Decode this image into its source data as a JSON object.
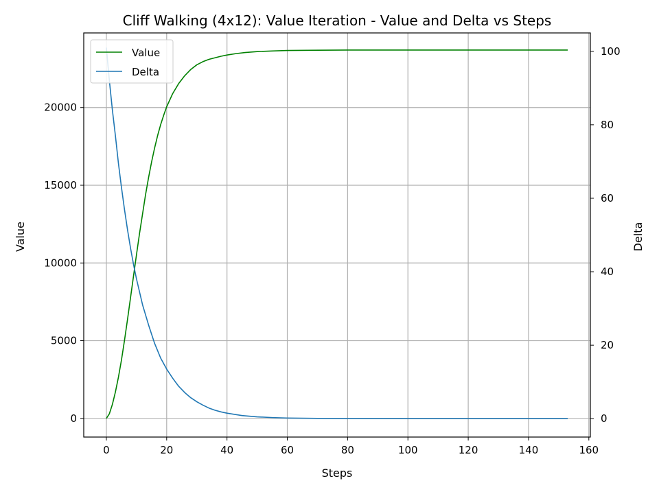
{
  "chart_data": {
    "type": "line",
    "title": "Cliff Walking (4x12): Value Iteration - Value and Delta vs Steps",
    "xlabel": "Steps",
    "ylabel": "Value",
    "y2label": "Delta",
    "xlim": [
      -7.5,
      160.5
    ],
    "ylim": [
      -1200,
      24800
    ],
    "y2lim": [
      -5,
      105
    ],
    "xticks": [
      0,
      20,
      40,
      60,
      80,
      100,
      120,
      140,
      160
    ],
    "yticks": [
      0,
      5000,
      10000,
      15000,
      20000
    ],
    "y2ticks": [
      0,
      20,
      40,
      60,
      80,
      100
    ],
    "grid": true,
    "legend_position": "upper-left",
    "colors": {
      "value": "#008000",
      "delta": "#1f77b4"
    },
    "series": [
      {
        "name": "Value",
        "axis": "left",
        "x": [
          0,
          1,
          2,
          3,
          4,
          5,
          6,
          7,
          8,
          9,
          10,
          11,
          12,
          13,
          14,
          15,
          16,
          17,
          18,
          19,
          20,
          22,
          24,
          26,
          28,
          30,
          32,
          34,
          36,
          38,
          40,
          43,
          46,
          50,
          55,
          60,
          70,
          80,
          90,
          100,
          120,
          140,
          153
        ],
        "values": [
          0,
          300,
          900,
          1700,
          2650,
          3750,
          5000,
          6350,
          7750,
          9150,
          10550,
          11900,
          13150,
          14400,
          15500,
          16500,
          17400,
          18200,
          18900,
          19500,
          20050,
          20900,
          21550,
          22050,
          22450,
          22750,
          22950,
          23100,
          23200,
          23300,
          23380,
          23470,
          23540,
          23600,
          23640,
          23670,
          23690,
          23700,
          23700,
          23700,
          23700,
          23700,
          23700
        ]
      },
      {
        "name": "Delta",
        "axis": "right",
        "x": [
          0,
          1,
          2,
          3,
          4,
          5,
          6,
          7,
          8,
          9,
          10,
          12,
          14,
          16,
          18,
          20,
          22,
          24,
          26,
          28,
          30,
          32,
          34,
          36,
          38,
          40,
          45,
          50,
          55,
          60,
          70,
          80,
          100,
          120,
          140,
          153
        ],
        "values": [
          101,
          92,
          84,
          77,
          69.5,
          63,
          57,
          51.5,
          46.5,
          42,
          38,
          31,
          25.5,
          20.5,
          16.5,
          13.5,
          11,
          8.8,
          7.1,
          5.7,
          4.6,
          3.7,
          2.9,
          2.3,
          1.85,
          1.5,
          0.85,
          0.5,
          0.3,
          0.18,
          0.07,
          0.03,
          0.01,
          0.0,
          0.0,
          0.0
        ]
      }
    ]
  }
}
